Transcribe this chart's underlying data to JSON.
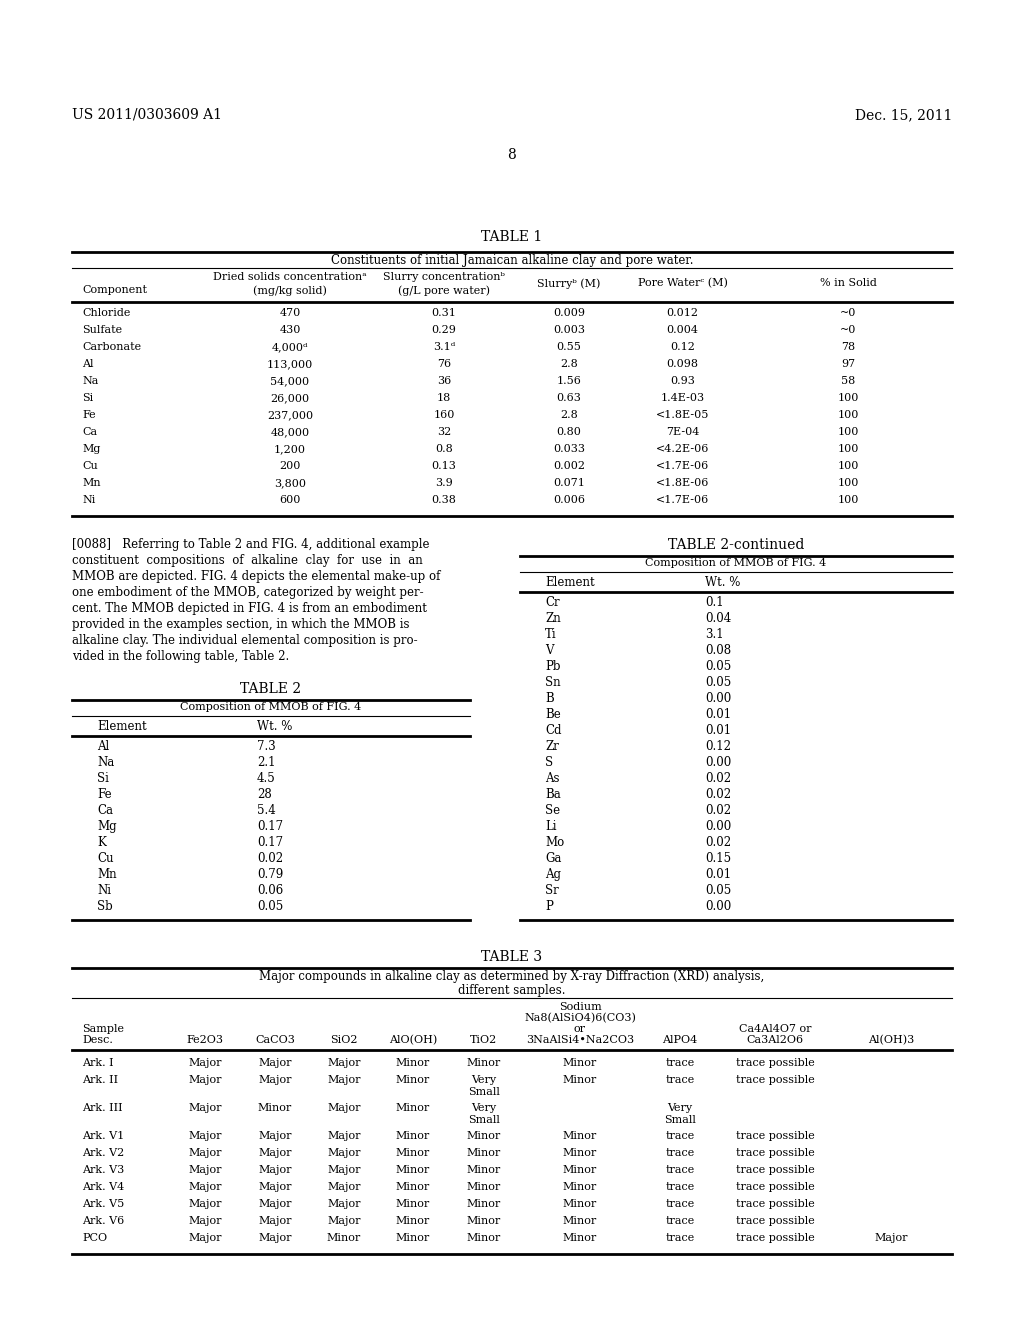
{
  "header_left": "US 2011/0303609 A1",
  "header_right": "Dec. 15, 2011",
  "page_num": "8",
  "table1_title": "TABLE 1",
  "table1_subtitle": "Constituents of initial Jamaican alkaline clay and pore water.",
  "table2_title": "TABLE 2",
  "table2_subtitle": "Composition of MMOB of FIG. 4",
  "table2cont_title": "TABLE 2-continued",
  "table2cont_subtitle": "Composition of MMOB of FIG. 4",
  "table3_title": "TABLE 3",
  "table3_subtitle1": "Major compounds in alkaline clay as determined by X-ray Diffraction (XRD) analysis,",
  "table3_subtitle2": "different samples.",
  "table1_data": [
    [
      "Chloride",
      "470",
      "0.31",
      "0.009",
      "0.012",
      "~0"
    ],
    [
      "Sulfate",
      "430",
      "0.29",
      "0.003",
      "0.004",
      "~0"
    ],
    [
      "Carbonate",
      "4,000ᵈ",
      "3.1ᵈ",
      "0.55",
      "0.12",
      "78"
    ],
    [
      "Al",
      "113,000",
      "76",
      "2.8",
      "0.098",
      "97"
    ],
    [
      "Na",
      "54,000",
      "36",
      "1.56",
      "0.93",
      "58"
    ],
    [
      "Si",
      "26,000",
      "18",
      "0.63",
      "1.4E-03",
      "100"
    ],
    [
      "Fe",
      "237,000",
      "160",
      "2.8",
      "<1.8E-05",
      "100"
    ],
    [
      "Ca",
      "48,000",
      "32",
      "0.80",
      "7E-04",
      "100"
    ],
    [
      "Mg",
      "1,200",
      "0.8",
      "0.033",
      "<4.2E-06",
      "100"
    ],
    [
      "Cu",
      "200",
      "0.13",
      "0.002",
      "<1.7E-06",
      "100"
    ],
    [
      "Mn",
      "3,800",
      "3.9",
      "0.071",
      "<1.8E-06",
      "100"
    ],
    [
      "Ni",
      "600",
      "0.38",
      "0.006",
      "<1.7E-06",
      "100"
    ]
  ],
  "table2_data": [
    [
      "Al",
      "7.3"
    ],
    [
      "Na",
      "2.1"
    ],
    [
      "Si",
      "4.5"
    ],
    [
      "Fe",
      "28"
    ],
    [
      "Ca",
      "5.4"
    ],
    [
      "Mg",
      "0.17"
    ],
    [
      "K",
      "0.17"
    ],
    [
      "Cu",
      "0.02"
    ],
    [
      "Mn",
      "0.79"
    ],
    [
      "Ni",
      "0.06"
    ],
    [
      "Sb",
      "0.05"
    ]
  ],
  "table2cont_data": [
    [
      "Cr",
      "0.1"
    ],
    [
      "Zn",
      "0.04"
    ],
    [
      "Ti",
      "3.1"
    ],
    [
      "V",
      "0.08"
    ],
    [
      "Pb",
      "0.05"
    ],
    [
      "Sn",
      "0.05"
    ],
    [
      "B",
      "0.00"
    ],
    [
      "Be",
      "0.01"
    ],
    [
      "Cd",
      "0.01"
    ],
    [
      "Zr",
      "0.12"
    ],
    [
      "S",
      "0.00"
    ],
    [
      "As",
      "0.02"
    ],
    [
      "Ba",
      "0.02"
    ],
    [
      "Se",
      "0.02"
    ],
    [
      "Li",
      "0.00"
    ],
    [
      "Mo",
      "0.02"
    ],
    [
      "Ga",
      "0.15"
    ],
    [
      "Ag",
      "0.01"
    ],
    [
      "Sr",
      "0.05"
    ],
    [
      "P",
      "0.00"
    ]
  ],
  "table3_data": [
    [
      "Ark. I",
      "Major",
      "Major",
      "Major",
      "Minor",
      "Minor",
      "Minor",
      "trace",
      "trace possible",
      ""
    ],
    [
      "Ark. II",
      "Major",
      "Major",
      "Major",
      "Minor",
      "Very\nSmall",
      "Minor",
      "trace",
      "trace possible",
      ""
    ],
    [
      "Ark. III",
      "Major",
      "Minor",
      "Major",
      "Minor",
      "Very\nSmall",
      "",
      "Very\nSmall",
      "",
      ""
    ],
    [
      "Ark. V1",
      "Major",
      "Major",
      "Major",
      "Minor",
      "Minor",
      "Minor",
      "trace",
      "trace possible",
      ""
    ],
    [
      "Ark. V2",
      "Major",
      "Major",
      "Major",
      "Minor",
      "Minor",
      "Minor",
      "trace",
      "trace possible",
      ""
    ],
    [
      "Ark. V3",
      "Major",
      "Major",
      "Major",
      "Minor",
      "Minor",
      "Minor",
      "trace",
      "trace possible",
      ""
    ],
    [
      "Ark. V4",
      "Major",
      "Major",
      "Major",
      "Minor",
      "Minor",
      "Minor",
      "trace",
      "trace possible",
      ""
    ],
    [
      "Ark. V5",
      "Major",
      "Major",
      "Major",
      "Minor",
      "Minor",
      "Minor",
      "trace",
      "trace possible",
      ""
    ],
    [
      "Ark. V6",
      "Major",
      "Major",
      "Major",
      "Minor",
      "Minor",
      "Minor",
      "trace",
      "trace possible",
      ""
    ],
    [
      "PCO",
      "Major",
      "Major",
      "Minor",
      "Minor",
      "Minor",
      "Minor",
      "trace",
      "trace possible",
      "Major"
    ]
  ],
  "para_lines": [
    "[0088]   Referring to Table 2 and FIG. 4, additional example",
    "constituent  compositions  of  alkaline  clay  for  use  in  an",
    "MMOB are depicted. FIG. 4 depicts the elemental make-up of",
    "one embodiment of the MMOB, categorized by weight per-",
    "cent. The MMOB depicted in FIG. 4 is from an embodiment",
    "provided in the examples section, in which the MMOB is",
    "alkaline clay. The individual elemental composition is pro-",
    "vided in the following table, Table 2."
  ],
  "bg_color": "#ffffff"
}
